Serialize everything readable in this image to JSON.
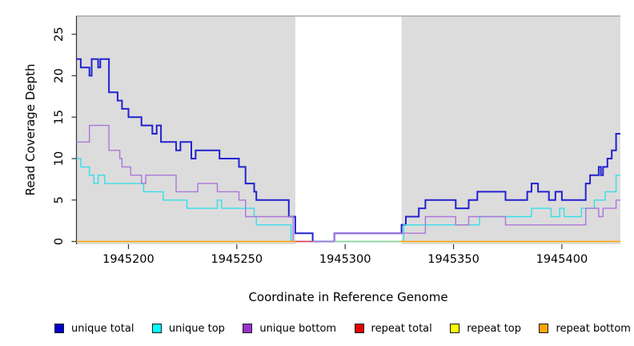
{
  "axes": {
    "xlabel": "Coordinate in Reference Genome",
    "ylabel": "Read Coverage Depth"
  },
  "chart_data": {
    "type": "line",
    "subtype": "step",
    "title": "",
    "xlabel": "Coordinate in Reference Genome",
    "ylabel": "Read Coverage Depth",
    "xlim": [
      1945176,
      1945427
    ],
    "ylim": [
      0,
      27.2
    ],
    "xticks": [
      1945200,
      1945250,
      1945300,
      1945350,
      1945400
    ],
    "yticks": [
      0,
      5,
      10,
      15,
      20,
      25
    ],
    "grid": false,
    "panel_fill": "#dcdcdc",
    "panel_border_color": "#9a9a9a",
    "repeat_region_band": {
      "from": 1945277,
      "to": 1945326,
      "fill": "#ffffff"
    },
    "series": [
      {
        "name": "unique total",
        "color": "#2222d0",
        "width": 2.0,
        "points": [
          [
            1945176,
            22
          ],
          [
            1945178,
            21
          ],
          [
            1945182,
            20
          ],
          [
            1945183,
            22
          ],
          [
            1945186,
            21
          ],
          [
            1945187,
            22
          ],
          [
            1945191,
            18
          ],
          [
            1945195,
            17
          ],
          [
            1945197,
            16
          ],
          [
            1945200,
            15
          ],
          [
            1945206,
            14
          ],
          [
            1945211,
            13
          ],
          [
            1945213,
            14
          ],
          [
            1945215,
            12
          ],
          [
            1945222,
            11
          ],
          [
            1945224,
            12
          ],
          [
            1945229,
            10
          ],
          [
            1945231,
            11
          ],
          [
            1945242,
            10
          ],
          [
            1945251,
            9
          ],
          [
            1945254,
            7
          ],
          [
            1945258,
            6
          ],
          [
            1945259,
            5
          ],
          [
            1945274,
            3
          ],
          [
            1945277,
            1
          ],
          [
            1945285,
            0
          ],
          [
            1945295,
            1
          ],
          [
            1945326,
            2
          ],
          [
            1945328,
            3
          ],
          [
            1945334,
            4
          ],
          [
            1945337,
            5
          ],
          [
            1945351,
            4
          ],
          [
            1945357,
            5
          ],
          [
            1945361,
            6
          ],
          [
            1945374,
            5
          ],
          [
            1945384,
            6
          ],
          [
            1945386,
            7
          ],
          [
            1945389,
            6
          ],
          [
            1945394,
            5
          ],
          [
            1945397,
            6
          ],
          [
            1945400,
            5
          ],
          [
            1945411,
            7
          ],
          [
            1945413,
            8
          ],
          [
            1945417,
            9
          ],
          [
            1945418,
            8
          ],
          [
            1945419,
            9
          ],
          [
            1945421,
            10
          ],
          [
            1945423,
            11
          ],
          [
            1945425,
            13
          ]
        ]
      },
      {
        "name": "unique top",
        "color": "#35dfe8",
        "width": 1.4,
        "points": [
          [
            1945176,
            10
          ],
          [
            1945178,
            9
          ],
          [
            1945182,
            8
          ],
          [
            1945184,
            7
          ],
          [
            1945186,
            8
          ],
          [
            1945189,
            7
          ],
          [
            1945207,
            6
          ],
          [
            1945216,
            5
          ],
          [
            1945227,
            4
          ],
          [
            1945241,
            5
          ],
          [
            1945243,
            4
          ],
          [
            1945258,
            3
          ],
          [
            1945259,
            2
          ],
          [
            1945275,
            0
          ],
          [
            1945327,
            2
          ],
          [
            1945362,
            3
          ],
          [
            1945386,
            4
          ],
          [
            1945395,
            3
          ],
          [
            1945399,
            4
          ],
          [
            1945401,
            3
          ],
          [
            1945409,
            4
          ],
          [
            1945415,
            5
          ],
          [
            1945420,
            6
          ],
          [
            1945425,
            8
          ]
        ]
      },
      {
        "name": "unique bottom",
        "color": "#ab76da",
        "width": 1.4,
        "points": [
          [
            1945176,
            12
          ],
          [
            1945182,
            14
          ],
          [
            1945191,
            11
          ],
          [
            1945196,
            10
          ],
          [
            1945197,
            9
          ],
          [
            1945201,
            8
          ],
          [
            1945206,
            7
          ],
          [
            1945208,
            8
          ],
          [
            1945222,
            6
          ],
          [
            1945232,
            7
          ],
          [
            1945241,
            6
          ],
          [
            1945251,
            5
          ],
          [
            1945254,
            3
          ],
          [
            1945276,
            0
          ],
          [
            1945295,
            1
          ],
          [
            1945337,
            3
          ],
          [
            1945351,
            2
          ],
          [
            1945357,
            3
          ],
          [
            1945374,
            2
          ],
          [
            1945411,
            4
          ],
          [
            1945417,
            3
          ],
          [
            1945419,
            4
          ],
          [
            1945425,
            5
          ]
        ]
      },
      {
        "name": "repeat total",
        "color": "#e60000",
        "width": 1.4,
        "points": [
          [
            1945176,
            0
          ]
        ]
      },
      {
        "name": "repeat top",
        "color": "#ffff00",
        "width": 1.4,
        "points": [
          [
            1945176,
            0
          ]
        ]
      },
      {
        "name": "repeat bottom",
        "color": "#ffa500",
        "width": 1.6,
        "points": [
          [
            1945176,
            0
          ]
        ]
      }
    ],
    "baseline_segments": [
      {
        "from": 1945176,
        "to": 1945277,
        "color": "#ffa500",
        "series": "repeat bottom"
      },
      {
        "from": 1945277,
        "to": 1945285,
        "color": "#e8404f",
        "series": "repeat total"
      },
      {
        "from": 1945295,
        "to": 1945325,
        "color": "#8fcf90",
        "series": "unique top + repeat top overlap"
      },
      {
        "from": 1945325,
        "to": 1945427,
        "color": "#ffa500",
        "series": "repeat bottom"
      }
    ],
    "legend_position": "bottom"
  },
  "legend": [
    {
      "label": "unique total",
      "color": "#0000cd"
    },
    {
      "label": "unique top",
      "color": "#00ffff"
    },
    {
      "label": "unique bottom",
      "color": "#9932cc"
    },
    {
      "label": "repeat total",
      "color": "#e60000"
    },
    {
      "label": "repeat top",
      "color": "#ffff00"
    },
    {
      "label": "repeat bottom",
      "color": "#ffa500"
    }
  ]
}
